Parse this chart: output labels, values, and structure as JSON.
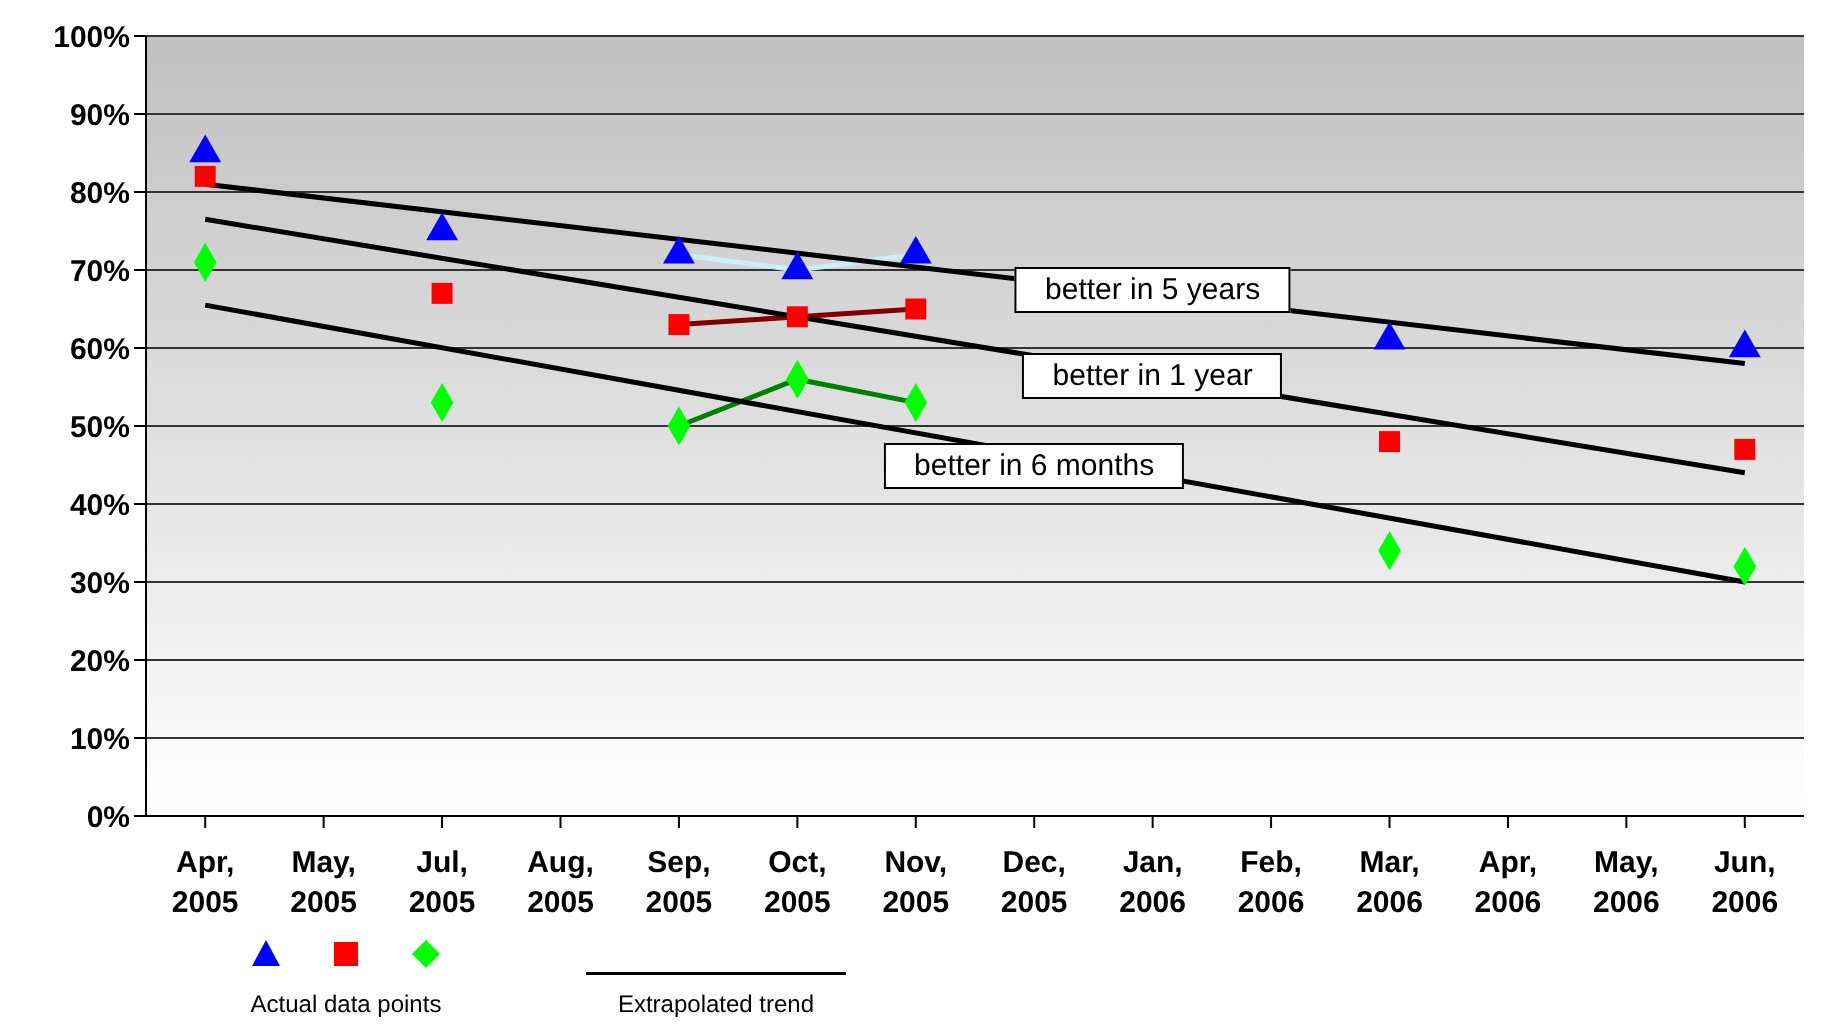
{
  "chart_data": {
    "type": "scatter",
    "categories": [
      "Apr, 2005",
      "May, 2005",
      "Jul, 2005",
      "Aug, 2005",
      "Sep, 2005",
      "Oct, 2005",
      "Nov, 2005",
      "Dec, 2005",
      "Jan, 2006",
      "Feb, 2006",
      "Mar, 2006",
      "Apr, 2006",
      "May, 2006",
      "Jun, 2006"
    ],
    "ylim": [
      0,
      100
    ],
    "yticks": [
      {
        "value": 0,
        "label": "0%"
      },
      {
        "value": 10,
        "label": "10%"
      },
      {
        "value": 20,
        "label": "20%"
      },
      {
        "value": 30,
        "label": "30%"
      },
      {
        "value": 40,
        "label": "40%"
      },
      {
        "value": 50,
        "label": "50%"
      },
      {
        "value": 60,
        "label": "60%"
      },
      {
        "value": 70,
        "label": "70%"
      },
      {
        "value": 80,
        "label": "80%"
      },
      {
        "value": 90,
        "label": "90%"
      },
      {
        "value": 100,
        "label": "100%"
      }
    ],
    "grid": "y",
    "series": [
      {
        "type": "line",
        "color": "#c8f0f8",
        "marker": "none",
        "values": [
          null,
          null,
          null,
          null,
          72,
          70,
          72,
          null,
          null,
          null,
          null,
          null,
          null,
          null
        ]
      },
      {
        "type": "line",
        "color": "#800000",
        "marker": "none",
        "values": [
          null,
          null,
          null,
          null,
          63,
          64,
          65,
          null,
          null,
          null,
          null,
          null,
          null,
          null
        ]
      },
      {
        "type": "line",
        "color": "#008000",
        "marker": "none",
        "values": [
          null,
          null,
          null,
          null,
          50,
          56,
          53,
          null,
          null,
          null,
          null,
          null,
          null,
          null
        ]
      },
      {
        "type": "line",
        "color": "#000000",
        "marker": "none",
        "values": [
          81,
          null,
          null,
          null,
          null,
          null,
          null,
          null,
          null,
          null,
          null,
          null,
          null,
          58
        ]
      },
      {
        "type": "line",
        "color": "#000000",
        "marker": "none",
        "values": [
          76.5,
          null,
          null,
          null,
          null,
          null,
          null,
          null,
          null,
          null,
          null,
          null,
          null,
          44
        ]
      },
      {
        "type": "line",
        "color": "#000000",
        "marker": "none",
        "values": [
          65.5,
          null,
          null,
          null,
          null,
          null,
          null,
          null,
          null,
          null,
          null,
          null,
          null,
          30
        ]
      },
      {
        "color": "#0000ff",
        "marker": "triangle",
        "values": [
          85,
          null,
          75,
          null,
          72,
          70,
          72,
          null,
          null,
          null,
          61,
          null,
          null,
          60
        ]
      },
      {
        "color": "#ff0000",
        "marker": "square",
        "values": [
          82,
          null,
          67,
          null,
          63,
          64,
          65,
          null,
          null,
          null,
          48,
          null,
          null,
          47
        ]
      },
      {
        "color": "#00ff00",
        "marker": "diamond",
        "values": [
          71,
          null,
          53,
          null,
          50,
          56,
          53,
          null,
          null,
          null,
          34,
          null,
          null,
          32
        ]
      }
    ],
    "annotations": [
      {
        "text": "better in 5 years",
        "x": "Jan, 2006",
        "y": 67.5
      },
      {
        "text": "better in 1 year",
        "x": "Jan, 2006",
        "y": 56.5
      },
      {
        "text": "better in 6 months",
        "x": "Dec, 2005",
        "y": 45
      },
      "Actual data points",
      "Extrapolated trend"
    ]
  }
}
